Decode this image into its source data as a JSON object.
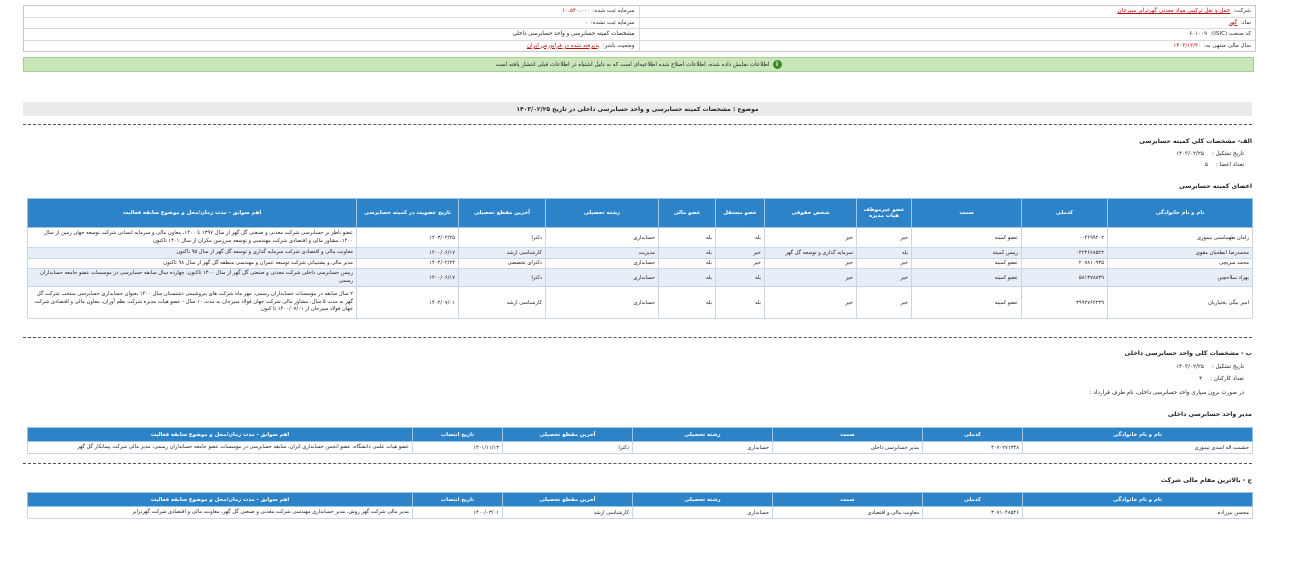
{
  "header": {
    "company_label": "شرکت:",
    "company_value": "حمل و نقل ترکیبی مواد معدنی گهرترابر سیرجان",
    "symbol_label": "نماد:",
    "symbol_value": "گهر",
    "isic_label": "کد صنعت (ISIC):",
    "isic_value": "۶۰۱۰۰۹",
    "fiscal_label": "سال مالی منتهی به:",
    "fiscal_value": "۱۴۰۳/۱۲/۳۰",
    "capital_reg_label": "سرمایه ثبت شده:",
    "capital_reg_value": "۱۰،۵۴۰،۰۰۰",
    "capital_unreg_label": "سرمایه ثبت نشده:",
    "capital_unreg_value": "۰",
    "audit_committee_label": "مشخصات کمیته حسابرسی و واحد حسابرسی داخلی",
    "status_label": "وضعیت ناشر:",
    "status_value": "پذیرفته شده در فرابورس ایران"
  },
  "notice": {
    "icon": "info-icon",
    "text": "اطلاعات نمایش داده شده، اطلاعات اصلاح شده اطلاعیه‌ای است که به دلیل اشتباه در اطلاعات قبلی انتشار یافته است"
  },
  "subject": "موضوع : مشخصات کمیته حسابرسی و واحد حسابرسی داخلی در تاریخ ۱۴۰۳/۰۲/۲۵",
  "section_a": {
    "title": "الف- مشخصات کلی کمیته حسابرسی",
    "formation_label": "تاریخ تشکیل :",
    "formation_value": "۱۴۰۳/۰۲/۲۵",
    "members_count_label": "تعداد اعضا :",
    "members_count_value": "۵",
    "members_title": "اعضای کمیته حسابرسی",
    "columns": [
      "نام و نام خانوادگی",
      "کدملی",
      "سمت",
      "عضو غیرموظف هیات مدیره",
      "شخص حقوقی",
      "عضو مستقل",
      "عضو مالی",
      "رشته تحصیلی",
      "آخرین مقطع تحصیلی",
      "تاریخ عضویت در کمیته حسابرسی",
      "اهم سوابق - مدت زمان/محل و موضوع سابقه فعالیت"
    ],
    "rows": [
      [
        "رامان طهماسبی تیموری",
        "۰۰۴۶۹۹۲۰۲",
        "عضو کمیته",
        "خیر",
        "خیر",
        "بله",
        "بله",
        "حسابداری",
        "دکترا",
        "۱۴۰۳/۰۲/۲۵",
        "عضو ناظر بر حسابرسی شرکت معدنی و صنعتی گل گهر از سال ۱۳۹۷ تا ۱۴۰۰، معاون مالی و سرمایه انسانی شرکت توسعه جهان زمین از سال ۱۴۰۰، مشاور مالی و اقتصادی شرکت مهندسی و توسعه سرزمین مکران از سال ۱۴۰۱ تاکنون"
      ],
      [
        "محمدرضا ابطحیان مقوی",
        "۰۴۲۴۶۶۸۵۲۲",
        "رییس کمیته",
        "بله",
        "سرمایه گذاری و توسعه گل گهر",
        "خیر",
        "بله",
        "مدیریت",
        "کارشناسی ارشد",
        "۱۴۰۰/۰۶/۱۷",
        "معاونت مالی و اقتصادی شرکت سرمایه گذاری و توسعه گل گهر از سال ۹۵ تاکنون"
      ],
      [
        "محمد سریچی",
        "۲۰۷۸۱۰۹۳۵",
        "عضو کمیته",
        "خیر",
        "خیر",
        "خیر",
        "بله",
        "حسابداری",
        "دکترای تخصصی",
        "۱۴۰۲/۰۲/۲۴",
        "مدیر مالی و پشتیبانی شرکت توسعه عمران و مهندسی منطقه گل گهر از سال ۹۸ تاکنون"
      ],
      [
        "بهزاد سلاحچین",
        "۵۸۱۳۷۸۸۳۹",
        "عضو کمیته",
        "خیر",
        "خیر",
        "بله",
        "بله",
        "حسابداری",
        "دکترا",
        "۱۴۰۰/۰۶/۱۷",
        "رییس حسابرسی داخلی شرکت معدنی و صنعتی گل گهر از سال ۱۴۰۰ تاکنون، چهارده سال سابقه حسابرسی در موسسات عضو جامعه حسابداران رسمی"
      ],
      [
        "امیر بیگی بختیاریان",
        "۳۹۹۲۷۶۲۲۳۹",
        "عضو کمیته",
        "خیر",
        "خیر",
        "بله",
        "بله",
        "حسابداری",
        "کارشناسی ارشد",
        "۱۴۰۲/۰۷/۰۱",
        "۲ سال سابقه در موسسات حسابداران رسمی، مهر ماه شرکت های پتروشیمی دشتستان سال ۱۴۰۰ بعنوان حسابداری حسابرسی منتخب شرکت گل گهر به مدت ۵ سال، مشاور مالی شرکت جهان فولاد سیرجان به مدت ۱۰ سال - عضو هیات مدیره شرکت نظم آوران، معاون مالی و اقتصادی شرکت جهان فولاد سیرجان از ۱۴۰۰/۰۷/۰۱ تا کنون"
      ]
    ]
  },
  "section_b": {
    "title": "ب - مشخصات کلی واحد حسابرسی داخلی",
    "formation_label": "تاریخ تشکیل :",
    "formation_value": "۱۴۰۳/۰۲/۲۵",
    "staff_count_label": "تعداد کارکنان :",
    "staff_count_value": "۴",
    "outsourcing_label": "در صورت برون سپاری واحد حسابرسی داخلی، نام طرف قرارداد :",
    "outsourcing_value": "",
    "manager_title": "مدیر واحد حسابرسی داخلی",
    "columns": [
      "نام و نام خانوادگی",
      "کدملی",
      "سمت",
      "رشته تحصیلی",
      "آخرین مقطع تحصیلی",
      "تاریخ انتصاب",
      "اهم سوابق - مدت زمان/محل و موضوع سابقه فعالیت"
    ],
    "rows": [
      [
        "حشمت اله اسدی تیموری",
        "۳۰۷۰۲۷۱۳۴۸",
        "مدیر حسابرسی داخلی",
        "حسابداری",
        "دکترا",
        "۱۴۰۱/۱۱/۱۳",
        "عضو هیات علمی دانشگاه، عضو انجمن حسابداری ایران، سابقه حسابرسی در موسسات عضو جامعه حسابداران رسمی، مدیر مالی شرکت پیمانکار گل گهر"
      ]
    ]
  },
  "section_c": {
    "title": "ج - بالاترین مقام مالی شرکت",
    "columns": [
      "نام و نام خانوادگی",
      "کدملی",
      "سمت",
      "رشته تحصیلی",
      "آخرین مقطع تحصیلی",
      "تاریخ انتصاب",
      "اهم سوابق - مدت زمان/محل و موضوع سابقه فعالیت"
    ],
    "rows": [
      [
        "محسن بیرزاده",
        "۳۰۷۱۰۴۸۵۴۶",
        "معاونت مالی و اقتصادی",
        "حسابداری",
        "کارشناسی ارشد",
        "۱۴۰۰/۰۳/۰۱",
        "مدیر مالی شرکت گهر روش، مدیر حسابداری مهندسی شرکت معدنی و صنعتی گل گهر، معاونت مالی و اقتصادی شرکت گهرترابر"
      ]
    ]
  }
}
